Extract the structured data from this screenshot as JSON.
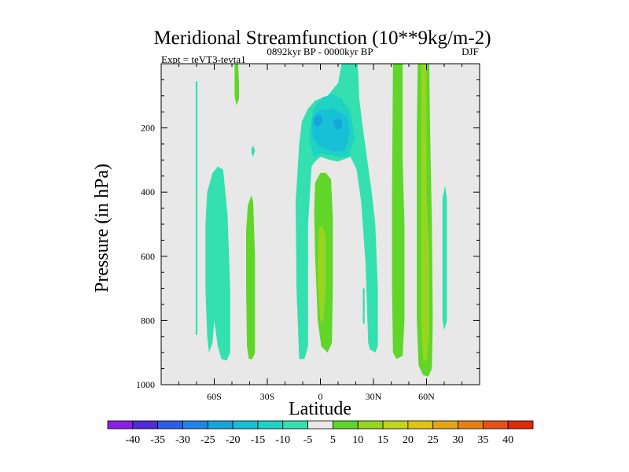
{
  "chart_data": {
    "type": "contour",
    "title": "Meridional Streamfunction (10**9kg/m-2)",
    "subtitle_left": "Expt = teVT3-tevta1",
    "subtitle_center": "0892kyr BP - 0000kyr BP",
    "subtitle_right": "DJF",
    "xlabel": "Latitude",
    "ylabel": "Pressure (in hPa)",
    "xlim": [
      -90,
      90
    ],
    "ylim": [
      0,
      1000
    ],
    "y_inverted": true,
    "x_ticks": [
      {
        "value": -60,
        "label": "60S"
      },
      {
        "value": -30,
        "label": "30S"
      },
      {
        "value": 0,
        "label": "0"
      },
      {
        "value": 30,
        "label": "30N"
      },
      {
        "value": 60,
        "label": "60N"
      }
    ],
    "y_ticks": [
      {
        "value": 200,
        "label": "200"
      },
      {
        "value": 400,
        "label": "400"
      },
      {
        "value": 600,
        "label": "600"
      },
      {
        "value": 800,
        "label": "800"
      },
      {
        "value": 1000,
        "label": "1000"
      }
    ],
    "colorbar": {
      "levels": [
        -40,
        -35,
        -30,
        -25,
        -20,
        -15,
        -10,
        -5,
        5,
        10,
        15,
        20,
        25,
        30,
        35,
        40
      ],
      "labels": [
        "-40",
        "-35",
        "-30",
        "-25",
        "-20",
        "-15",
        "-10",
        "-5",
        "5",
        "10",
        "15",
        "20",
        "25",
        "30",
        "35",
        "40"
      ],
      "colors": [
        "#8a1ee6",
        "#4e2bd8",
        "#2a5ee8",
        "#1e86e6",
        "#17a5dc",
        "#17c0d6",
        "#1ed2c4",
        "#34e0b0",
        "#e8e8e8",
        "#5fd628",
        "#96d61e",
        "#c4d41a",
        "#e0c414",
        "#e6a414",
        "#e68014",
        "#e65014",
        "#e0280a"
      ]
    },
    "regions": [
      {
        "name": "cyan-strip-88s",
        "level": -5,
        "color": "#34e0b0",
        "points": [
          [
            -70.5,
            55
          ],
          [
            -69.5,
            55
          ],
          [
            -69.5,
            845
          ],
          [
            -70.5,
            845
          ]
        ]
      },
      {
        "name": "cyan-band-60s",
        "level": -5,
        "color": "#34e0b0",
        "points": [
          [
            -64,
            400
          ],
          [
            -61,
            340
          ],
          [
            -58,
            320
          ],
          [
            -55,
            330
          ],
          [
            -52.5,
            470
          ],
          [
            -51,
            700
          ],
          [
            -51,
            900
          ],
          [
            -53,
            925
          ],
          [
            -56,
            920
          ],
          [
            -58,
            880
          ],
          [
            -60,
            800
          ],
          [
            -61,
            870
          ],
          [
            -63,
            900
          ],
          [
            -64,
            850
          ],
          [
            -65,
            700
          ],
          [
            -65,
            500
          ]
        ]
      },
      {
        "name": "cyan-dot-38s",
        "level": -5,
        "color": "#34e0b0",
        "points": [
          [
            -39,
            265
          ],
          [
            -38,
            255
          ],
          [
            -37,
            270
          ],
          [
            -38,
            290
          ],
          [
            -39,
            280
          ]
        ]
      },
      {
        "name": "green-band-52s",
        "level": 10,
        "color": "#5fd628",
        "points": [
          [
            -48.5,
            0
          ],
          [
            -46.5,
            0
          ],
          [
            -46,
            60
          ],
          [
            -46,
            110
          ],
          [
            -47.5,
            130
          ],
          [
            -48.5,
            100
          ]
        ]
      },
      {
        "name": "green-band-40s",
        "level": 10,
        "color": "#5fd628",
        "points": [
          [
            -41,
            440
          ],
          [
            -39,
            410
          ],
          [
            -38,
            430
          ],
          [
            -37,
            600
          ],
          [
            -37,
            900
          ],
          [
            -38.5,
            920
          ],
          [
            -40.5,
            920
          ],
          [
            -41.5,
            880
          ],
          [
            -42,
            700
          ],
          [
            -42,
            520
          ]
        ]
      },
      {
        "name": "cyan-arch",
        "level": -5,
        "color": "#34e0b0",
        "points": [
          [
            -14,
            430
          ],
          [
            -13,
            340
          ],
          [
            -12,
            250
          ],
          [
            -10.5,
            180
          ],
          [
            -7,
            140
          ],
          [
            -3,
            115
          ],
          [
            4,
            100
          ],
          [
            10,
            60
          ],
          [
            12,
            0
          ],
          [
            21,
            0
          ],
          [
            21.5,
            40
          ],
          [
            22,
            110
          ],
          [
            24,
            200
          ],
          [
            26.5,
            300
          ],
          [
            29,
            400
          ],
          [
            31,
            500
          ],
          [
            32.5,
            700
          ],
          [
            32.5,
            880
          ],
          [
            31,
            900
          ],
          [
            28,
            890
          ],
          [
            27,
            870
          ],
          [
            25.5,
            620
          ],
          [
            23,
            430
          ],
          [
            20.5,
            330
          ],
          [
            17,
            290
          ],
          [
            10,
            305
          ],
          [
            5.5,
            300
          ],
          [
            0,
            290
          ],
          [
            -3,
            305
          ],
          [
            -5,
            320
          ],
          [
            -7,
            500
          ],
          [
            -7,
            880
          ],
          [
            -9,
            920
          ],
          [
            -12,
            920
          ],
          [
            -13.5,
            700
          ]
        ]
      },
      {
        "name": "cyan-inner-1",
        "level": -10,
        "color": "#1ed2c4",
        "points": [
          [
            -6.5,
            230
          ],
          [
            -4,
            140
          ],
          [
            1,
            105
          ],
          [
            7,
            95
          ],
          [
            12,
            110
          ],
          [
            17,
            150
          ],
          [
            19.5,
            230
          ],
          [
            16,
            290
          ],
          [
            10,
            290
          ],
          [
            5,
            285
          ],
          [
            0,
            280
          ],
          [
            -4,
            290
          ]
        ]
      },
      {
        "name": "blue-core",
        "level": -15,
        "color": "#17c0d6",
        "points": [
          [
            -5,
            190
          ],
          [
            -3,
            155
          ],
          [
            0,
            145
          ],
          [
            6,
            140
          ],
          [
            11,
            150
          ],
          [
            15,
            165
          ],
          [
            16.5,
            210
          ],
          [
            14,
            270
          ],
          [
            8,
            275
          ],
          [
            3,
            265
          ],
          [
            -1,
            255
          ],
          [
            -4,
            230
          ]
        ]
      },
      {
        "name": "deep-blue-core",
        "level": -20,
        "color": "#17a5dc",
        "points": [
          [
            -4,
            170
          ],
          [
            -1.5,
            160
          ],
          [
            1,
            165
          ],
          [
            1,
            185
          ],
          [
            -1,
            195
          ],
          [
            -3.5,
            190
          ]
        ]
      },
      {
        "name": "deep-blue-core-2",
        "level": -20,
        "color": "#17a5dc",
        "points": [
          [
            7,
            180
          ],
          [
            9.5,
            170
          ],
          [
            12,
            175
          ],
          [
            12,
            200
          ],
          [
            9,
            205
          ]
        ]
      },
      {
        "name": "green-eq-band",
        "level": 10,
        "color": "#5fd628",
        "points": [
          [
            -3,
            370
          ],
          [
            0,
            340
          ],
          [
            3,
            340
          ],
          [
            6,
            360
          ],
          [
            7,
            480
          ],
          [
            7,
            700
          ],
          [
            6.5,
            870
          ],
          [
            4,
            900
          ],
          [
            0.5,
            880
          ],
          [
            -1.5,
            800
          ],
          [
            -3,
            600
          ],
          [
            -3.5,
            460
          ]
        ]
      },
      {
        "name": "yellowgreen-eq-band",
        "level": 15,
        "color": "#96d61e",
        "points": [
          [
            -1,
            520
          ],
          [
            1,
            500
          ],
          [
            3,
            540
          ],
          [
            3,
            700
          ],
          [
            1.5,
            810
          ],
          [
            0,
            800
          ],
          [
            -1.5,
            700
          ],
          [
            -1.5,
            600
          ]
        ]
      },
      {
        "name": "cyan-strip-25n",
        "level": -5,
        "color": "#34e0b0",
        "points": [
          [
            24,
            700
          ],
          [
            25,
            700
          ],
          [
            25,
            810
          ],
          [
            24,
            810
          ]
        ]
      },
      {
        "name": "green-band-45n",
        "level": 10,
        "color": "#5fd628",
        "points": [
          [
            41,
            0
          ],
          [
            46.5,
            0
          ],
          [
            46.5,
            300
          ],
          [
            47.5,
            500
          ],
          [
            47.5,
            800
          ],
          [
            46.5,
            910
          ],
          [
            43,
            920
          ],
          [
            41,
            900
          ],
          [
            40.5,
            700
          ],
          [
            40.5,
            400
          ]
        ]
      },
      {
        "name": "green-band-60n",
        "level": 10,
        "color": "#5fd628",
        "points": [
          [
            55,
            0
          ],
          [
            61.5,
            0
          ],
          [
            62,
            200
          ],
          [
            63,
            500
          ],
          [
            63.5,
            800
          ],
          [
            63,
            950
          ],
          [
            61,
            975
          ],
          [
            58,
            970
          ],
          [
            55.5,
            940
          ],
          [
            54.5,
            800
          ],
          [
            54.5,
            500
          ],
          [
            54.5,
            200
          ]
        ]
      },
      {
        "name": "yellowgreen-band-60n",
        "level": 15,
        "color": "#96d61e",
        "points": [
          [
            57,
            0
          ],
          [
            60,
            0
          ],
          [
            60,
            400
          ],
          [
            61.5,
            600
          ],
          [
            61.5,
            850
          ],
          [
            60,
            930
          ],
          [
            58,
            920
          ],
          [
            57,
            800
          ],
          [
            57,
            500
          ]
        ]
      },
      {
        "name": "cyan-strip-70n",
        "level": -5,
        "color": "#34e0b0",
        "points": [
          [
            69,
            420
          ],
          [
            70.5,
            380
          ],
          [
            71.5,
            420
          ],
          [
            71.5,
            800
          ],
          [
            70,
            830
          ],
          [
            69,
            800
          ]
        ]
      }
    ]
  }
}
